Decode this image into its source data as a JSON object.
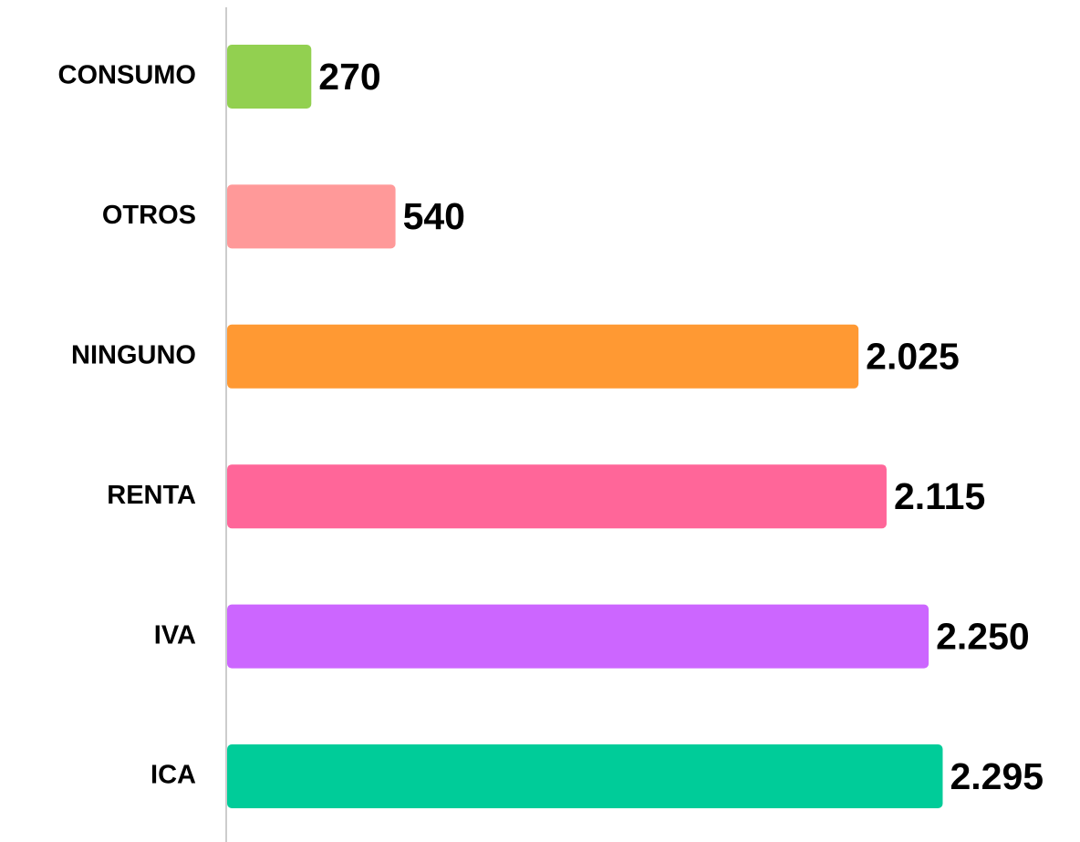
{
  "chart_data": {
    "type": "hbar",
    "categories": [
      "CONSUMO",
      "OTROS",
      "NINGUNO",
      "RENTA",
      "IVA",
      "ICA"
    ],
    "values": [
      270,
      540,
      2025,
      2115,
      2250,
      2295
    ],
    "value_labels": [
      "270",
      "540",
      "2.025",
      "2.115",
      "2.250",
      "2.295"
    ],
    "colors": [
      "#92d050",
      "#ff9999",
      "#ff9933",
      "#ff6699",
      "#cc66ff",
      "#00cc99"
    ],
    "xlim": [
      0,
      2750
    ]
  }
}
